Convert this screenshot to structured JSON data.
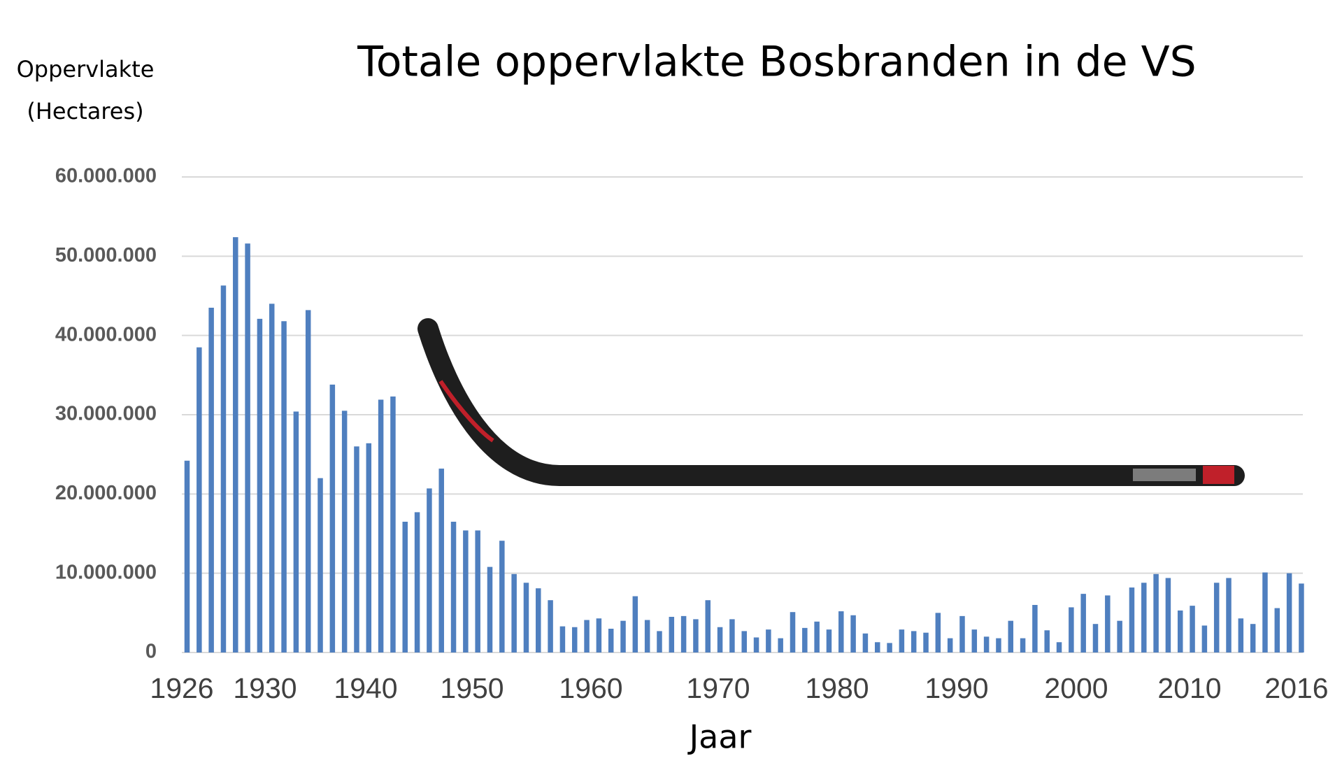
{
  "chart_data": {
    "type": "bar",
    "title": "Totale oppervlakte  Bosbranden in de VS",
    "y_label": [
      "Oppervlakte",
      "(Hectares)"
    ],
    "x_label": "Jaar",
    "x_tick_labels": [
      "1926",
      "1930",
      "1940",
      "1950",
      "1960",
      "1970",
      "1980",
      "1990",
      "2000",
      "2010",
      "2016"
    ],
    "color": "#4f7fbf",
    "values": [
      24200000,
      38500000,
      43500000,
      46300000,
      52400000,
      51600000,
      42100000,
      44000000,
      41800000,
      30400000,
      43200000,
      22000000,
      33800000,
      30500000,
      26000000,
      26400000,
      31900000,
      32300000,
      16500000,
      17700000,
      20700000,
      23200000,
      16500000,
      15400000,
      15400000,
      10800000,
      14100000,
      9900000,
      8800000,
      8100000,
      6600000,
      3300000,
      3200000,
      4100000,
      4300000,
      3000000,
      4000000,
      7100000,
      4100000,
      2700000,
      4500000,
      4600000,
      4200000,
      6600000,
      3200000,
      4200000,
      2700000,
      1900000,
      2900000,
      1800000,
      5100000,
      3100000,
      3900000,
      2900000,
      5200000,
      4700000,
      2400000,
      1300000,
      1200000,
      2900000,
      2700000,
      2500000,
      5000000,
      1800000,
      4600000,
      2900000,
      2000000,
      1800000,
      4000000,
      1800000,
      6000000,
      2800000,
      1300000,
      5700000,
      7400000,
      3600000,
      7200000,
      4000000,
      8200000,
      8800000,
      9900000,
      9400000,
      5300000,
      5900000,
      3400000,
      8800000,
      9400000,
      4300000,
      3600000,
      10100000,
      5600000,
      10000000,
      8700000
    ],
    "ylim": [
      0,
      60000000
    ],
    "yticks": [
      {
        "value": 0,
        "label": "0"
      },
      {
        "value": 10000000,
        "label": "10.000.000"
      },
      {
        "value": 20000000,
        "label": "20.000.000"
      },
      {
        "value": 30000000,
        "label": "30.000.000"
      },
      {
        "value": 40000000,
        "label": "40.000.000"
      },
      {
        "value": 50000000,
        "label": "50.000.000"
      },
      {
        "value": 60000000,
        "label": "60.000.000"
      }
    ],
    "grid": true
  }
}
